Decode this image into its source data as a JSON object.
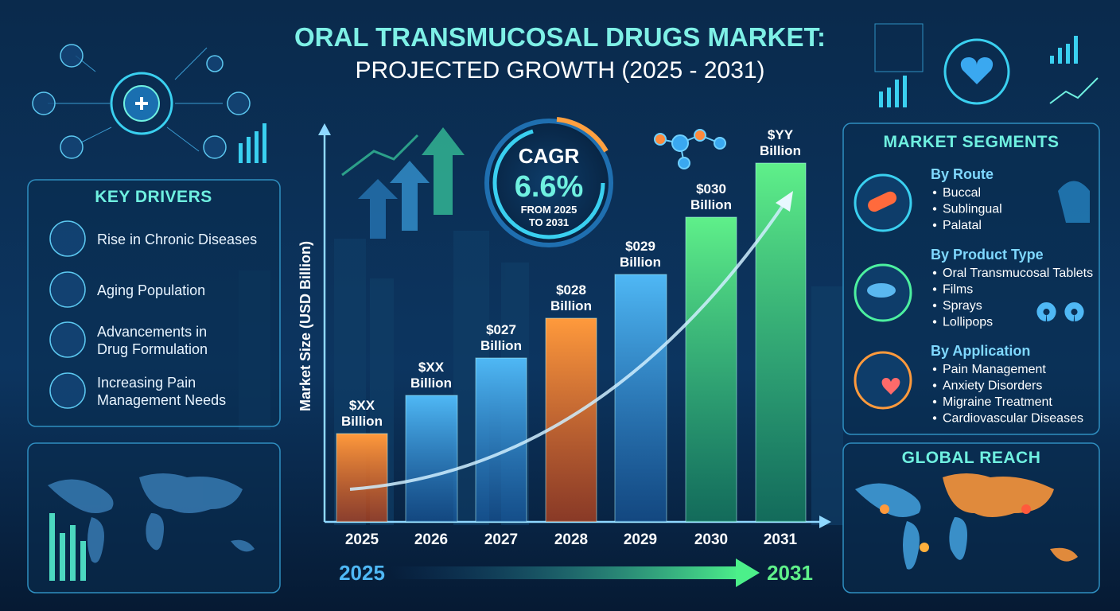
{
  "header": {
    "title_line1": "ORAL TRANSMUCOSAL DRUGS MARKET:",
    "title_line2": "PROJECTED GROWTH (2025 - 2031)"
  },
  "key_drivers": {
    "title": "KEY DRIVERS",
    "items": [
      [
        "Rise in Chronic Diseases"
      ],
      [
        "Aging Population"
      ],
      [
        "Advancements in",
        "Drug Formulation"
      ],
      [
        "Increasing Pain",
        "Management Needs"
      ]
    ]
  },
  "chart": {
    "y_axis_label": "Market Size (USD Billion)",
    "bars": [
      {
        "year": "2025",
        "label_lines": [
          "$XX",
          "Billion"
        ]
      },
      {
        "year": "2026",
        "label_lines": [
          "$XX",
          "Billion"
        ]
      },
      {
        "year": "2027",
        "label_lines": [
          "$027",
          "Billion"
        ]
      },
      {
        "year": "2028",
        "label_lines": [
          "$028",
          "Billion"
        ]
      },
      {
        "year": "2029",
        "label_lines": [
          "$029",
          "Billion"
        ]
      },
      {
        "year": "2030",
        "label_lines": [
          "$030",
          "Billion"
        ]
      },
      {
        "year": "2031",
        "label_lines": [
          "$YY",
          "Billion"
        ]
      }
    ]
  },
  "cagr": {
    "title": "CAGR",
    "value": "6.6%",
    "note_lines": [
      "FROM 2025",
      "TO 2031"
    ]
  },
  "timeline": {
    "start": "2025",
    "end": "2031"
  },
  "segments": {
    "title": "MARKET SEGMENTS",
    "groups": [
      {
        "heading": "By Route",
        "items": [
          "Buccal",
          "Sublingual",
          "Palatal"
        ]
      },
      {
        "heading": "By Product Type",
        "items": [
          "Oral Transmucosal Tablets",
          "Films",
          "Sprays",
          "Lollipops"
        ]
      },
      {
        "heading": "By Application",
        "items": [
          "Pain Management",
          "Anxiety Disorders",
          "Migraine Treatment",
          "Cardiovascular Diseases"
        ]
      }
    ]
  },
  "global_reach": {
    "title": "GLOBAL REACH"
  }
}
